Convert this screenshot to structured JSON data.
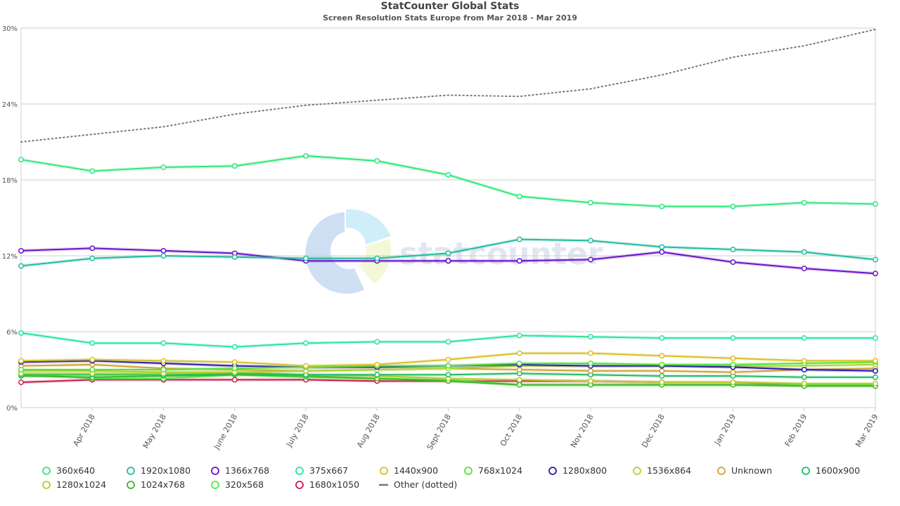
{
  "chart_data": {
    "type": "line",
    "title": "StatCounter Global Stats",
    "subtitle": "Screen Resolution Stats Europe from Mar 2018 - Mar 2019",
    "watermark": "statcounter",
    "x": [
      "Mar 2018",
      "Apr 2018",
      "May 2018",
      "June 2018",
      "July 2018",
      "Aug 2018",
      "Sept 2018",
      "Oct 2018",
      "Nov 2018",
      "Dec 2018",
      "Jan 2019",
      "Feb 2019",
      "Mar 2019"
    ],
    "x_tick_labels": [
      "Apr 2018",
      "May 2018",
      "June 2018",
      "July 2018",
      "Aug 2018",
      "Sept 2018",
      "Oct 2018",
      "Nov 2018",
      "Dec 2018",
      "Jan 2019",
      "Feb 2019",
      "Mar 2019"
    ],
    "ylim": [
      0,
      30
    ],
    "y_ticks": [
      0,
      6,
      12,
      18,
      24,
      30
    ],
    "y_tick_labels": [
      "0%",
      "6%",
      "12%",
      "18%",
      "24%",
      "30%"
    ],
    "grid": true,
    "legend_position": "bottom",
    "series": [
      {
        "name": "360x640",
        "color": "#2fe87a",
        "values": [
          19.6,
          18.7,
          19.0,
          19.1,
          19.9,
          19.5,
          18.4,
          16.7,
          16.2,
          15.9,
          15.9,
          16.2,
          16.1
        ]
      },
      {
        "name": "1920x1080",
        "color": "#1fbe9c",
        "values": [
          11.2,
          11.8,
          12.0,
          11.9,
          11.8,
          11.8,
          12.2,
          13.3,
          13.2,
          12.7,
          12.5,
          12.3,
          11.7
        ]
      },
      {
        "name": "1366x768",
        "color": "#6a12c8",
        "values": [
          12.4,
          12.6,
          12.4,
          12.2,
          11.6,
          11.6,
          11.6,
          11.6,
          11.7,
          12.3,
          11.5,
          11.0,
          10.6
        ]
      },
      {
        "name": "375x667",
        "color": "#28e69a",
        "values": [
          5.9,
          5.1,
          5.1,
          4.8,
          5.1,
          5.2,
          5.2,
          5.7,
          5.6,
          5.5,
          5.5,
          5.5,
          5.5
        ]
      },
      {
        "name": "1440x900",
        "color": "#d9c025",
        "values": [
          3.7,
          3.8,
          3.7,
          3.6,
          3.3,
          3.4,
          3.8,
          4.3,
          4.3,
          4.1,
          3.9,
          3.7,
          3.7
        ]
      },
      {
        "name": "768x1024",
        "color": "#54e33a",
        "values": [
          3.0,
          3.0,
          3.0,
          3.1,
          3.2,
          3.3,
          3.3,
          3.5,
          3.5,
          3.4,
          3.4,
          3.5,
          3.6
        ]
      },
      {
        "name": "1280x800",
        "color": "#2a1ab0",
        "values": [
          3.6,
          3.7,
          3.5,
          3.3,
          3.2,
          3.2,
          3.3,
          3.4,
          3.3,
          3.3,
          3.2,
          3.0,
          2.9
        ]
      },
      {
        "name": "1536x864",
        "color": "#a8d82c",
        "values": [
          2.7,
          2.7,
          2.7,
          2.8,
          2.9,
          3.0,
          3.1,
          3.3,
          3.3,
          3.3,
          3.3,
          3.3,
          3.4
        ]
      },
      {
        "name": "Unknown",
        "color": "#d2a233",
        "values": [
          3.3,
          3.4,
          3.1,
          3.0,
          2.9,
          3.0,
          3.1,
          3.0,
          2.9,
          2.9,
          2.8,
          3.0,
          3.1
        ]
      },
      {
        "name": "1600x900",
        "color": "#22bb66",
        "values": [
          2.6,
          2.6,
          2.6,
          2.7,
          2.6,
          2.6,
          2.6,
          2.7,
          2.6,
          2.5,
          2.5,
          2.4,
          2.4
        ]
      },
      {
        "name": "1280x1024",
        "color": "#b7cc2a",
        "values": [
          2.9,
          2.9,
          2.8,
          2.8,
          2.6,
          2.5,
          2.3,
          2.2,
          2.1,
          2.0,
          2.0,
          1.9,
          1.9
        ]
      },
      {
        "name": "1024x768",
        "color": "#3cb82a",
        "values": [
          2.5,
          2.4,
          2.5,
          2.6,
          2.5,
          2.3,
          2.1,
          1.8,
          1.8,
          1.8,
          1.8,
          1.7,
          1.7
        ]
      },
      {
        "name": "320x568",
        "color": "#4cee44",
        "values": [
          2.7,
          2.3,
          2.3,
          2.6,
          2.4,
          2.3,
          2.2,
          1.8,
          1.8,
          1.8,
          1.8,
          1.8,
          1.8
        ]
      },
      {
        "name": "1680x1050",
        "color": "#c81e4a",
        "values": [
          2.0,
          2.2,
          2.2,
          2.2,
          2.2,
          2.1,
          2.1,
          2.1,
          2.1,
          2.0,
          2.0,
          1.8,
          1.8
        ]
      },
      {
        "name": "Other (dotted)",
        "color": "#777777",
        "dotted": true,
        "values": [
          21.0,
          21.6,
          22.2,
          23.2,
          23.9,
          24.3,
          24.7,
          24.6,
          25.2,
          26.3,
          27.7,
          28.6,
          29.9
        ]
      }
    ]
  }
}
